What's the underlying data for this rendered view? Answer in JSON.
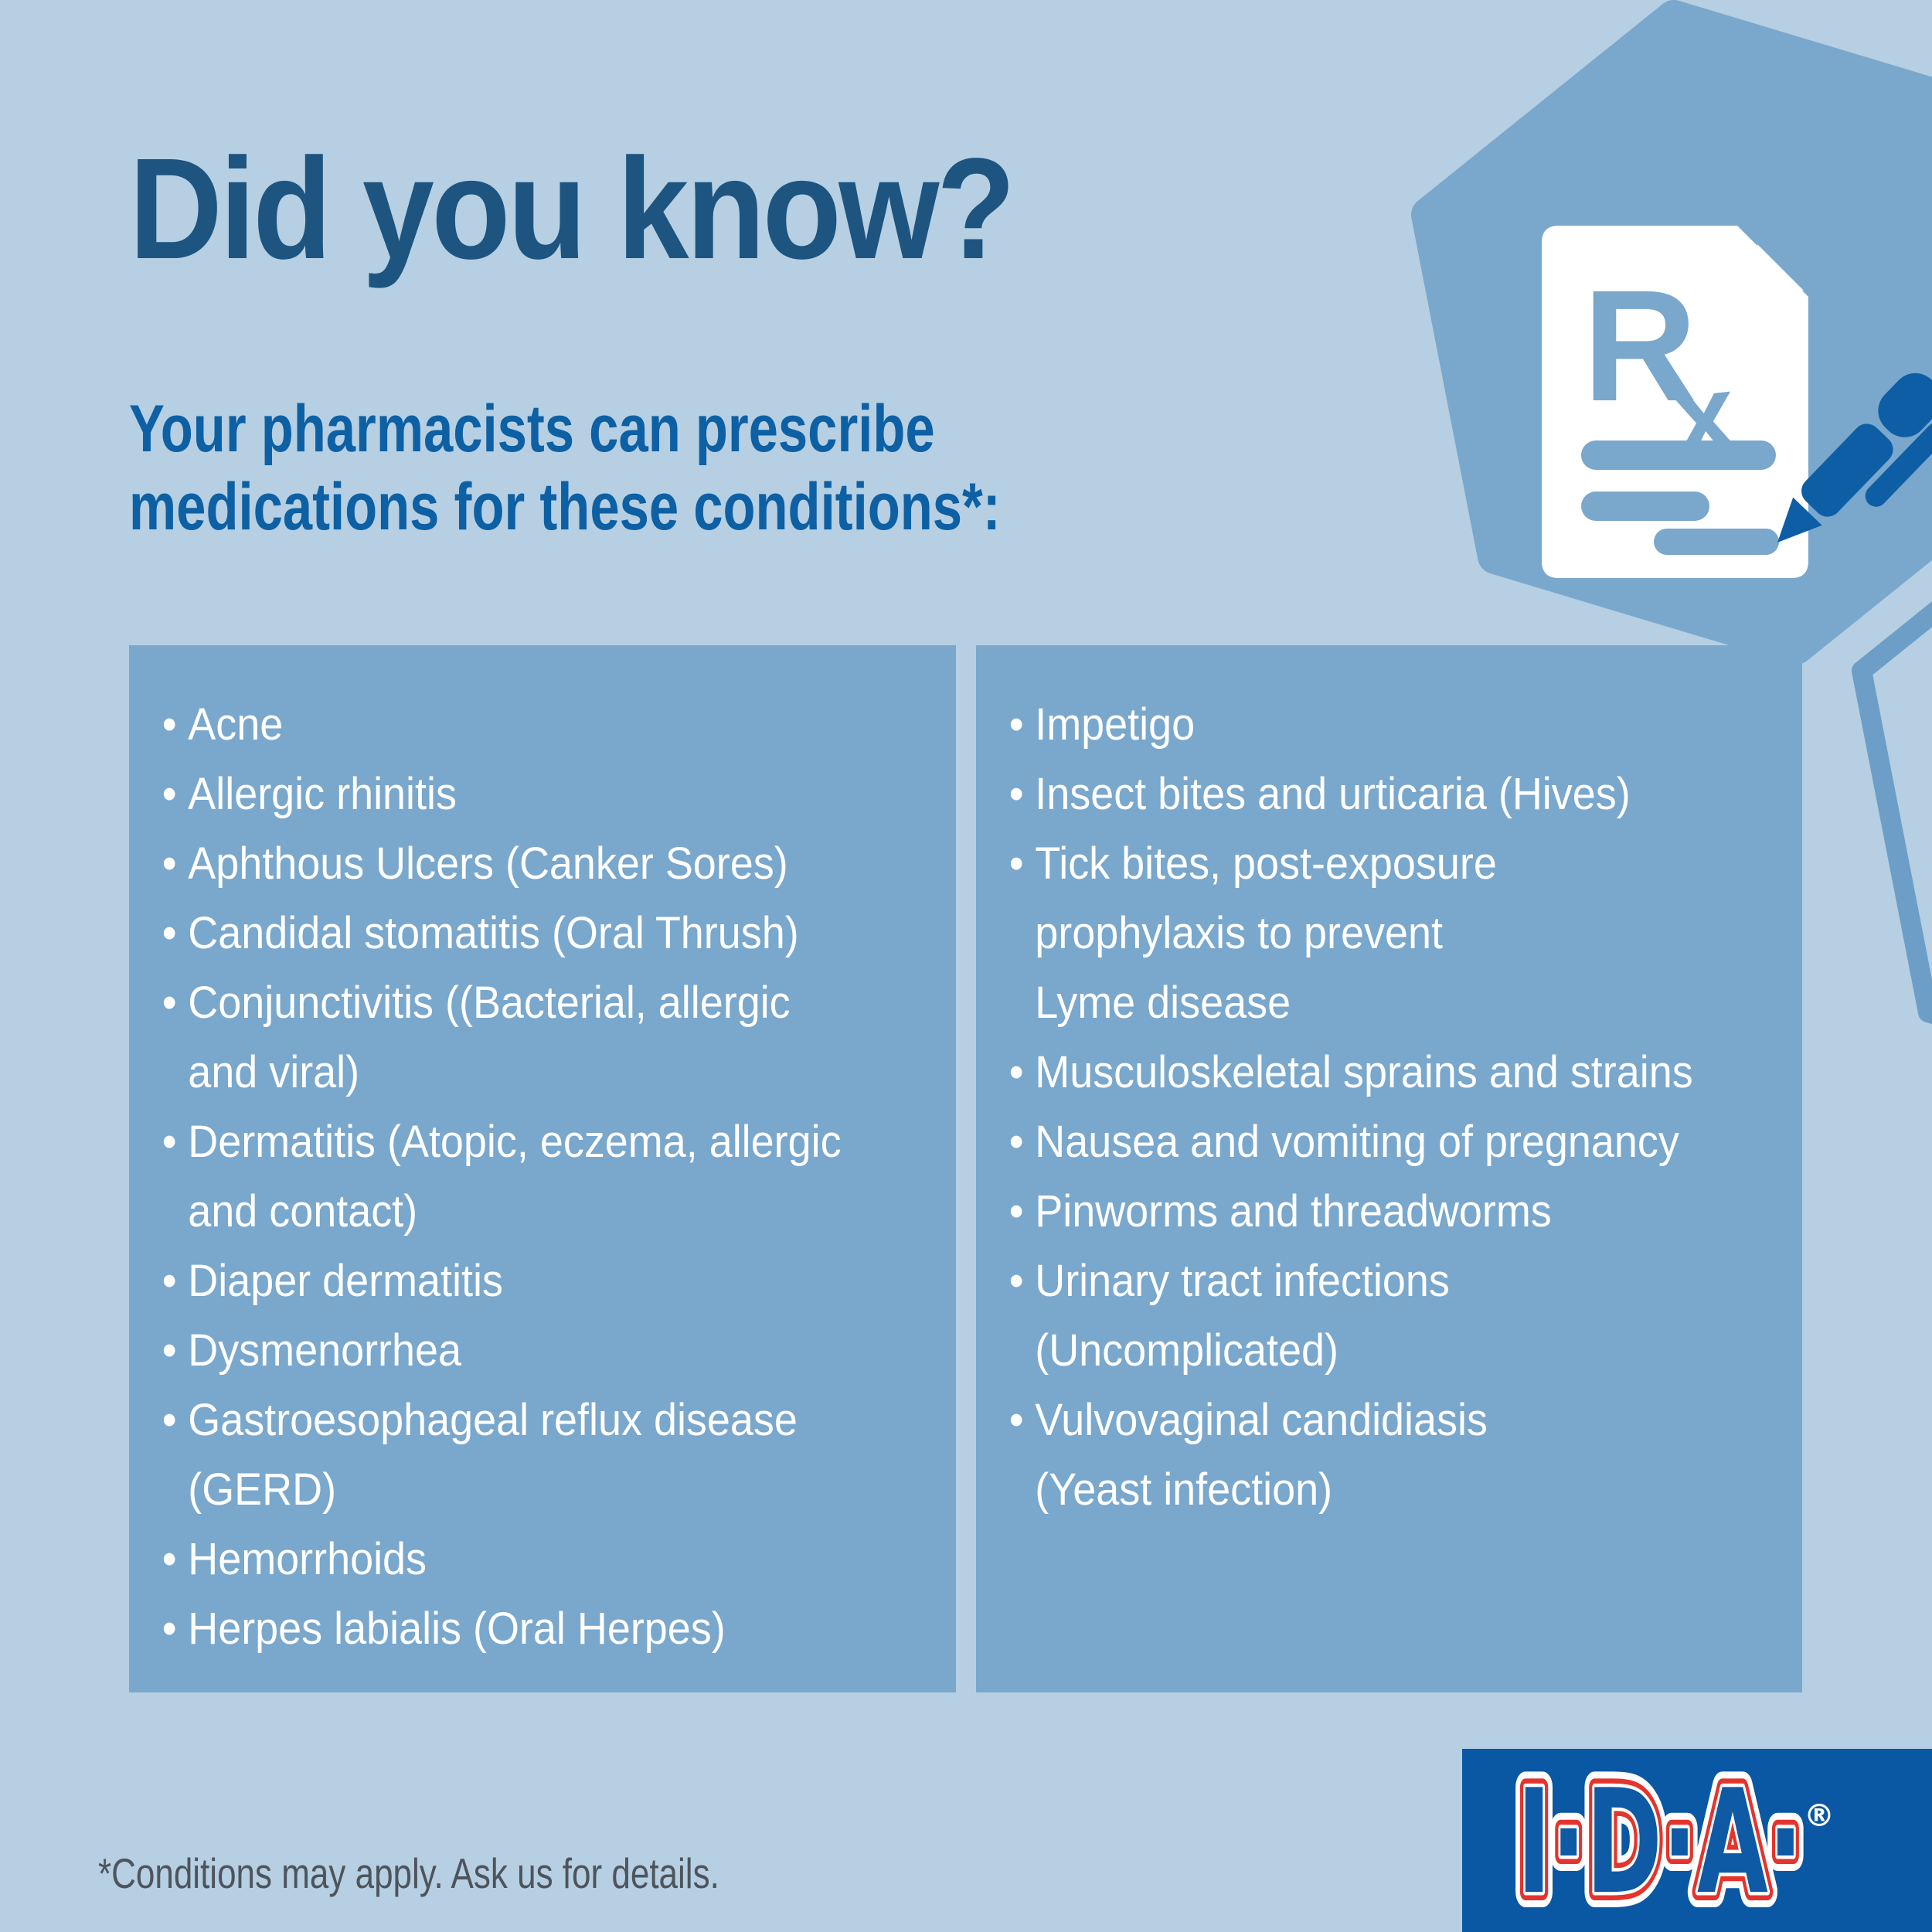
{
  "header": {
    "title": "Did you know?",
    "subtitle": "Your pharmacists can prescribe\nmedications for these conditions*:"
  },
  "conditions": {
    "left": [
      "Acne",
      "Allergic rhinitis",
      "Aphthous Ulcers (Canker Sores)",
      "Candidal stomatitis (Oral Thrush)",
      "Conjunctivitis ((Bacterial, allergic\nand viral)",
      "Dermatitis (Atopic, eczema, allergic\nand contact)",
      "Diaper dermatitis",
      "Dysmenorrhea",
      "Gastroesophageal reflux disease\n(GERD)",
      "Hemorrhoids",
      "Herpes labialis (Oral Herpes)"
    ],
    "right": [
      "Impetigo",
      "Insect bites and urticaria (Hives)",
      "Tick bites, post-exposure\nprophylaxis to prevent\nLyme disease",
      "Musculoskeletal sprains and strains",
      "Nausea and vomiting of pregnancy",
      "Pinworms and threadworms",
      "Urinary tract infections\n(Uncomplicated)",
      "Vulvovaginal candidiasis\n(Yeast infection)"
    ]
  },
  "footnote": "*Conditions may apply. Ask us for details.",
  "rx_icon": {
    "r": "R",
    "x": "x"
  },
  "logo": {
    "brand": "I·D·A·",
    "registered": "®"
  },
  "colors": {
    "background": "#b6cfe2",
    "panel": "#7aa7cc",
    "hex-outline": "#6d9ec7",
    "title": "#1d5480",
    "subtitle": "#0d60a4",
    "icon-blue": "#0e5ea6",
    "list-text": "#ffffff",
    "logo-bg": "#0a57a3",
    "logo-red": "#e3342d",
    "logo-blue": "#0f5aa5",
    "footnote": "#4e545d"
  }
}
